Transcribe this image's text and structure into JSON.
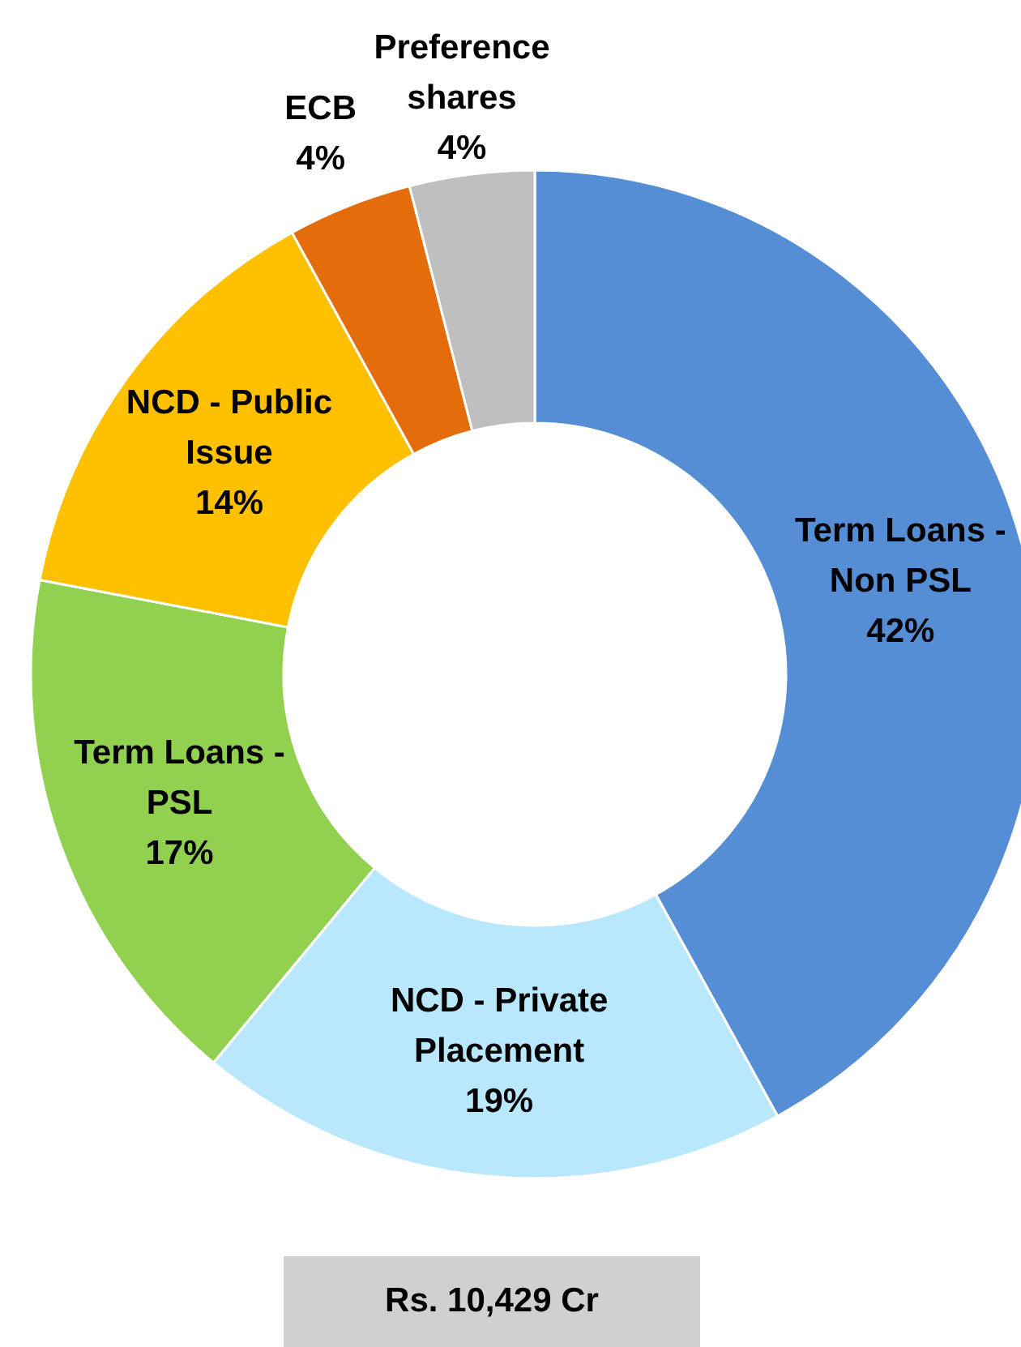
{
  "chart_data": {
    "type": "donut",
    "categories": [
      "Term Loans - Non PSL",
      "NCD - Private Placement",
      "Term Loans - PSL",
      "NCD - Public Issue",
      "ECB",
      "Preference shares"
    ],
    "values": [
      42,
      19,
      17,
      14,
      4,
      4
    ],
    "colors": [
      "#558ed5",
      "#b9e7fb",
      "#92d050",
      "#ffc000",
      "#e46c0a",
      "#bfbfbf"
    ],
    "value_labels": [
      "42%",
      "19%",
      "17%",
      "14%",
      "4%",
      "4%"
    ],
    "annotations": [
      "Rs. 10,429 Cr"
    ]
  }
}
